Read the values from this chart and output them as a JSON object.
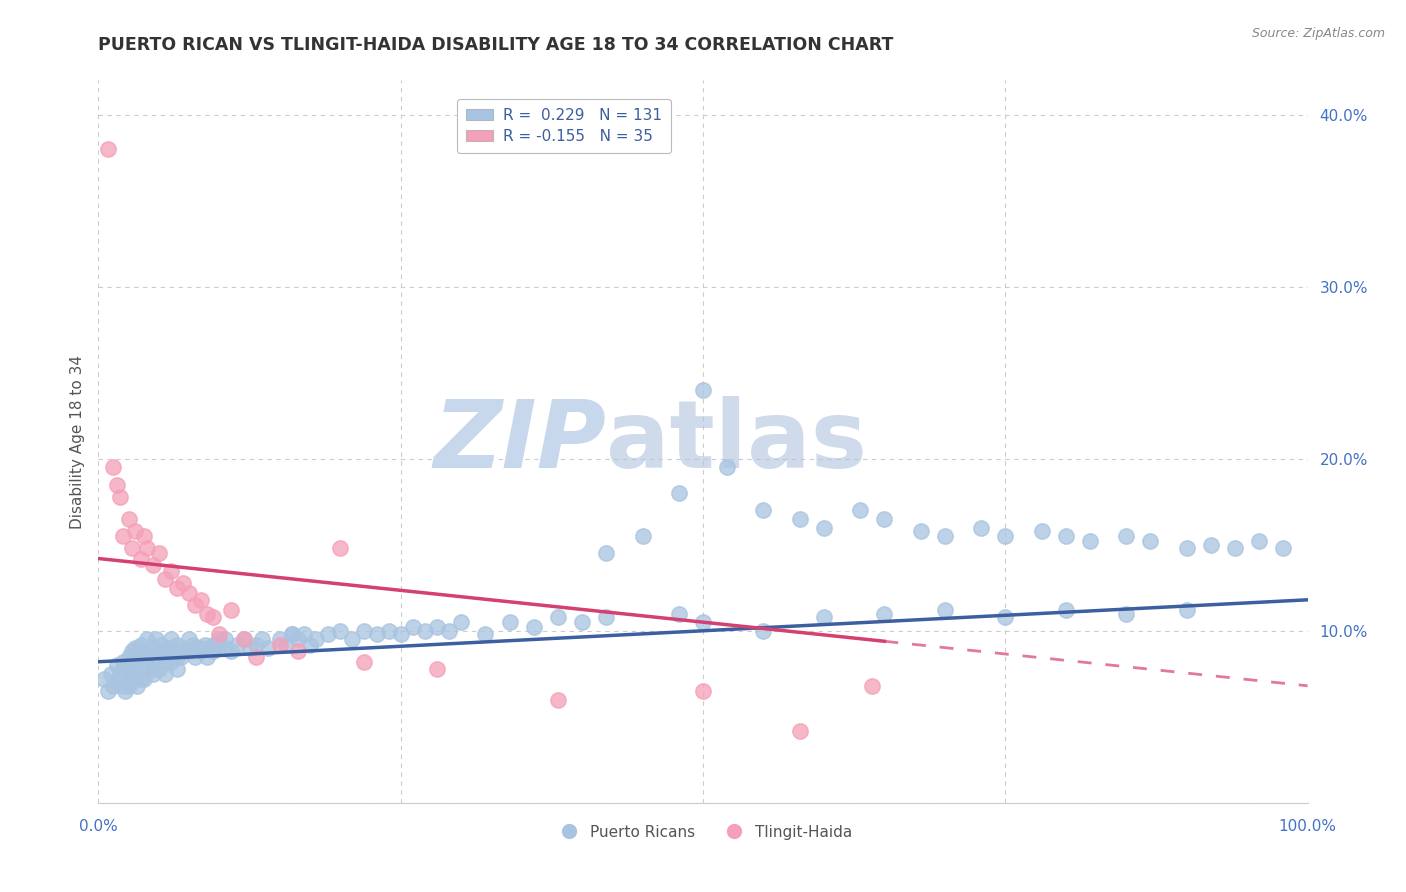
{
  "title": "PUERTO RICAN VS TLINGIT-HAIDA DISABILITY AGE 18 TO 34 CORRELATION CHART",
  "source_text": "Source: ZipAtlas.com",
  "ylabel": "Disability Age 18 to 34",
  "xlim": [
    0.0,
    1.0
  ],
  "ylim": [
    0.0,
    0.42
  ],
  "yticks": [
    0.0,
    0.1,
    0.2,
    0.3,
    0.4
  ],
  "blue_R": 0.229,
  "blue_N": 131,
  "pink_R": -0.155,
  "pink_N": 35,
  "legend_label_blue": "Puerto Ricans",
  "legend_label_pink": "Tlingit-Haida",
  "blue_color": "#a8c4e0",
  "pink_color": "#f4a0b8",
  "blue_line_color": "#3c5fa0",
  "pink_line_color": "#d44070",
  "title_color": "#333333",
  "axis_label_color": "#555555",
  "tick_color": "#4472c4",
  "grid_color": "#cccccc",
  "background_color": "#ffffff",
  "watermark_color": "#dce6f0",
  "blue_x": [
    0.005,
    0.008,
    0.01,
    0.012,
    0.015,
    0.015,
    0.018,
    0.02,
    0.02,
    0.022,
    0.022,
    0.025,
    0.025,
    0.028,
    0.028,
    0.03,
    0.03,
    0.032,
    0.032,
    0.035,
    0.035,
    0.038,
    0.038,
    0.04,
    0.04,
    0.042,
    0.045,
    0.045,
    0.048,
    0.05,
    0.05,
    0.052,
    0.055,
    0.055,
    0.058,
    0.06,
    0.06,
    0.062,
    0.065,
    0.065,
    0.068,
    0.07,
    0.072,
    0.075,
    0.078,
    0.08,
    0.082,
    0.085,
    0.088,
    0.09,
    0.092,
    0.095,
    0.098,
    0.1,
    0.105,
    0.11,
    0.115,
    0.12,
    0.125,
    0.13,
    0.135,
    0.14,
    0.15,
    0.155,
    0.16,
    0.165,
    0.17,
    0.175,
    0.18,
    0.19,
    0.2,
    0.21,
    0.22,
    0.23,
    0.24,
    0.25,
    0.26,
    0.27,
    0.28,
    0.29,
    0.3,
    0.32,
    0.34,
    0.36,
    0.38,
    0.4,
    0.42,
    0.45,
    0.48,
    0.5,
    0.52,
    0.55,
    0.58,
    0.6,
    0.63,
    0.65,
    0.68,
    0.7,
    0.73,
    0.75,
    0.78,
    0.8,
    0.82,
    0.85,
    0.87,
    0.9,
    0.92,
    0.94,
    0.96,
    0.98,
    0.025,
    0.035,
    0.045,
    0.055,
    0.065,
    0.075,
    0.085,
    0.095,
    0.105,
    0.16,
    0.42,
    0.48,
    0.5,
    0.55,
    0.6,
    0.65,
    0.7,
    0.75,
    0.8,
    0.85,
    0.9
  ],
  "blue_y": [
    0.072,
    0.065,
    0.075,
    0.068,
    0.08,
    0.07,
    0.075,
    0.082,
    0.068,
    0.078,
    0.065,
    0.085,
    0.072,
    0.088,
    0.075,
    0.09,
    0.078,
    0.085,
    0.068,
    0.092,
    0.078,
    0.088,
    0.072,
    0.095,
    0.08,
    0.085,
    0.09,
    0.075,
    0.095,
    0.088,
    0.078,
    0.092,
    0.085,
    0.075,
    0.09,
    0.082,
    0.095,
    0.088,
    0.092,
    0.078,
    0.085,
    0.09,
    0.088,
    0.095,
    0.092,
    0.085,
    0.09,
    0.088,
    0.092,
    0.085,
    0.09,
    0.088,
    0.092,
    0.095,
    0.09,
    0.088,
    0.092,
    0.095,
    0.09,
    0.092,
    0.095,
    0.09,
    0.095,
    0.092,
    0.098,
    0.095,
    0.098,
    0.092,
    0.095,
    0.098,
    0.1,
    0.095,
    0.1,
    0.098,
    0.1,
    0.098,
    0.102,
    0.1,
    0.102,
    0.1,
    0.105,
    0.098,
    0.105,
    0.102,
    0.108,
    0.105,
    0.145,
    0.155,
    0.18,
    0.24,
    0.195,
    0.17,
    0.165,
    0.16,
    0.17,
    0.165,
    0.158,
    0.155,
    0.16,
    0.155,
    0.158,
    0.155,
    0.152,
    0.155,
    0.152,
    0.148,
    0.15,
    0.148,
    0.152,
    0.148,
    0.068,
    0.072,
    0.078,
    0.082,
    0.085,
    0.088,
    0.09,
    0.092,
    0.095,
    0.098,
    0.108,
    0.11,
    0.105,
    0.1,
    0.108,
    0.11,
    0.112,
    0.108,
    0.112,
    0.11,
    0.112
  ],
  "pink_x": [
    0.008,
    0.012,
    0.015,
    0.018,
    0.02,
    0.025,
    0.028,
    0.03,
    0.035,
    0.038,
    0.04,
    0.045,
    0.05,
    0.055,
    0.06,
    0.065,
    0.07,
    0.075,
    0.08,
    0.085,
    0.09,
    0.095,
    0.1,
    0.11,
    0.12,
    0.13,
    0.15,
    0.165,
    0.2,
    0.22,
    0.28,
    0.38,
    0.5,
    0.58,
    0.64
  ],
  "pink_y": [
    0.38,
    0.195,
    0.185,
    0.178,
    0.155,
    0.165,
    0.148,
    0.158,
    0.142,
    0.155,
    0.148,
    0.138,
    0.145,
    0.13,
    0.135,
    0.125,
    0.128,
    0.122,
    0.115,
    0.118,
    0.11,
    0.108,
    0.098,
    0.112,
    0.095,
    0.085,
    0.092,
    0.088,
    0.148,
    0.082,
    0.078,
    0.06,
    0.065,
    0.042,
    0.068
  ],
  "blue_line_start_x": 0.0,
  "blue_line_end_x": 1.0,
  "blue_line_start_y": 0.082,
  "blue_line_end_y": 0.118,
  "pink_line_solid_end_x": 0.65,
  "pink_line_start_x": 0.0,
  "pink_line_end_x": 1.0,
  "pink_line_start_y": 0.142,
  "pink_line_end_y": 0.068
}
